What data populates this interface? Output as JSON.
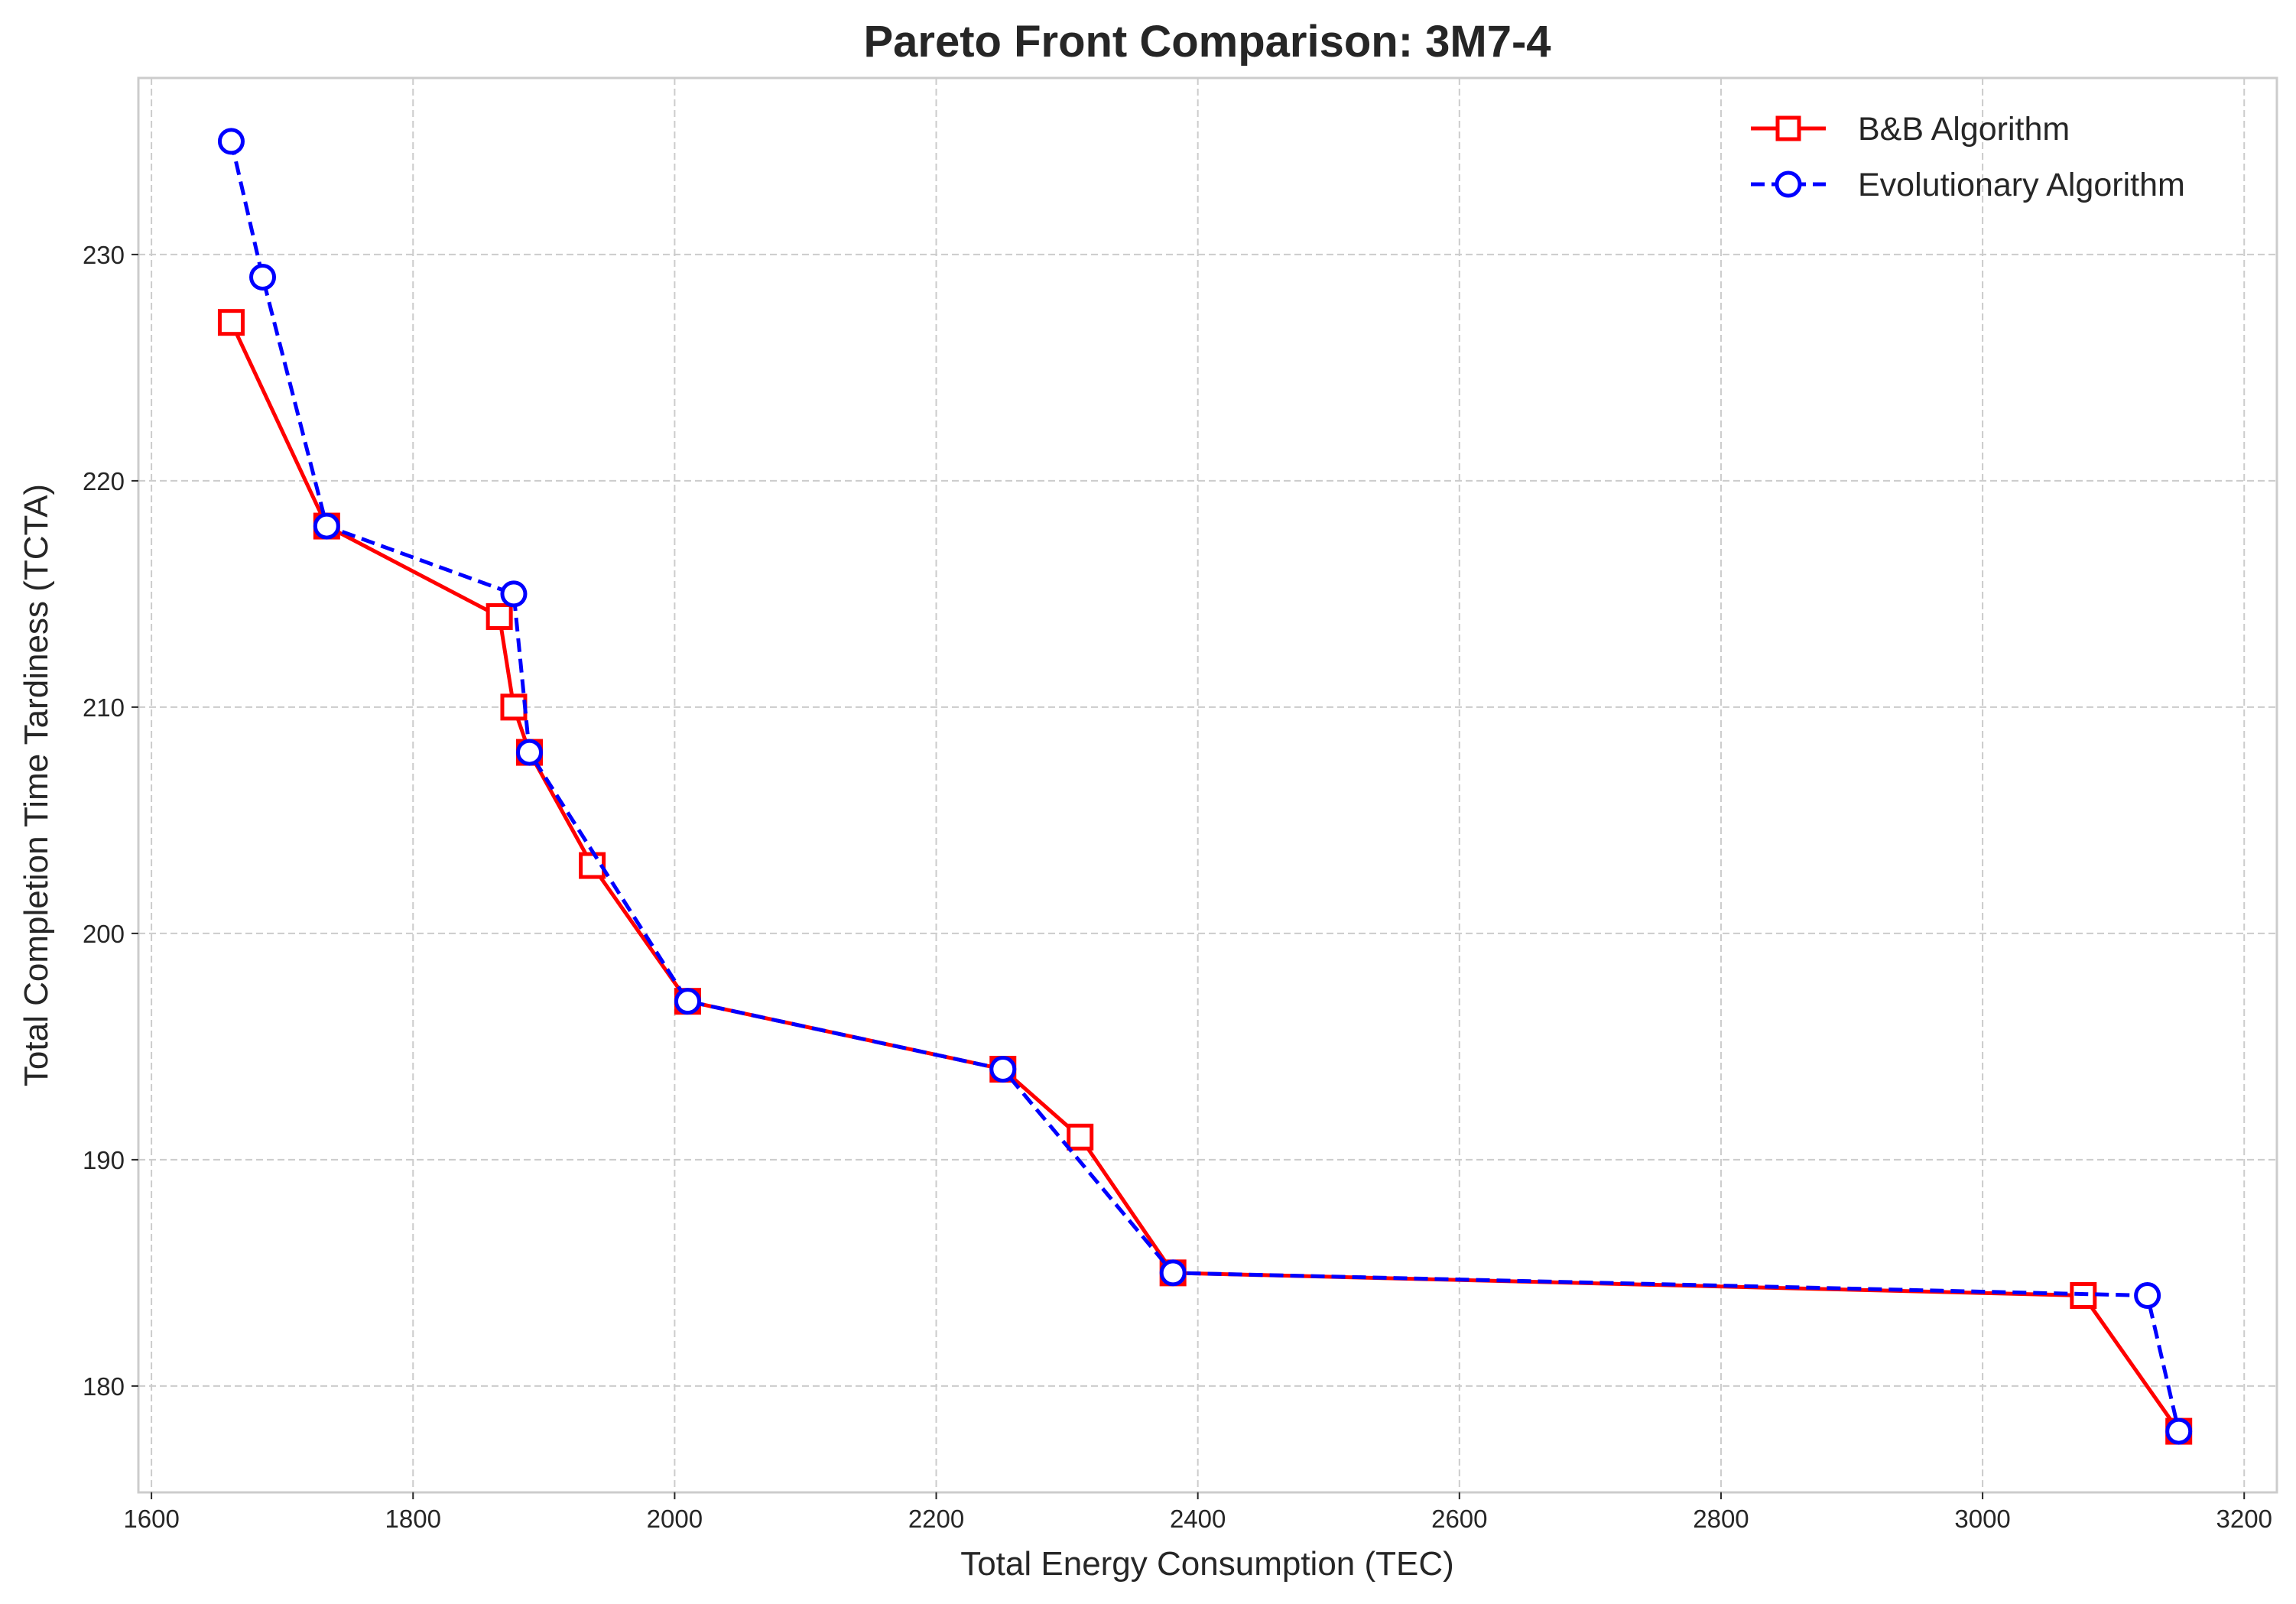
{
  "chart_data": {
    "type": "line",
    "title": "Pareto Front Comparison: 3M7-4",
    "xlabel": "Total Energy Consumption (TEC)",
    "ylabel": "Total Completion Time Tardiness (TCTA)",
    "xlim": [
      1590,
      3225
    ],
    "ylim": [
      175.3,
      237.8
    ],
    "xticks": [
      1600,
      1800,
      2000,
      2200,
      2400,
      2600,
      2800,
      3000,
      3200
    ],
    "yticks": [
      180,
      190,
      200,
      210,
      220,
      230
    ],
    "grid": true,
    "legend_position": "top-right",
    "series": [
      {
        "name": "B&B Algorithm",
        "color": "#ff0000",
        "marker": "square",
        "line_style": "solid",
        "x": [
          1661,
          1734,
          1866,
          1877,
          1889,
          1937,
          2010,
          2251,
          2310,
          2381,
          3077,
          3150
        ],
        "y": [
          227,
          218,
          214,
          210,
          208,
          203,
          197,
          194,
          191,
          185,
          184,
          178
        ]
      },
      {
        "name": "Evolutionary Algorithm",
        "color": "#0000ff",
        "marker": "circle",
        "line_style": "dashed",
        "x": [
          1661,
          1685,
          1734,
          1877,
          1889,
          2010,
          2251,
          2381,
          3126,
          3150
        ],
        "y": [
          235,
          229,
          218,
          215,
          208,
          197,
          194,
          185,
          184,
          178
        ]
      }
    ]
  }
}
